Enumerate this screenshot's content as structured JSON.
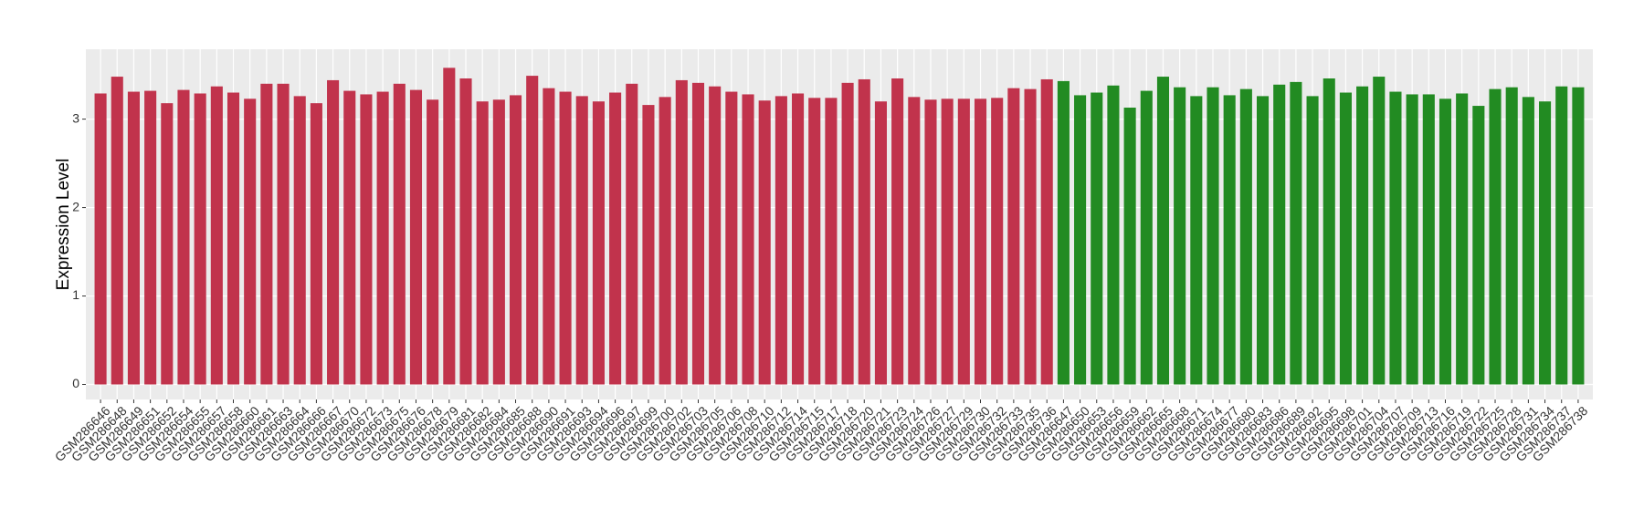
{
  "chart_data": {
    "type": "bar",
    "y_label": "Expression Level",
    "categories": [
      "GSM286646",
      "GSM286648",
      "GSM286649",
      "GSM286651",
      "GSM286652",
      "GSM286654",
      "GSM286655",
      "GSM286657",
      "GSM286658",
      "GSM286660",
      "GSM286661",
      "GSM286663",
      "GSM286664",
      "GSM286666",
      "GSM286667",
      "GSM286670",
      "GSM286672",
      "GSM286673",
      "GSM286675",
      "GSM286676",
      "GSM286678",
      "GSM286679",
      "GSM286681",
      "GSM286682",
      "GSM286684",
      "GSM286685",
      "GSM286688",
      "GSM286690",
      "GSM286691",
      "GSM286693",
      "GSM286694",
      "GSM286696",
      "GSM286697",
      "GSM286699",
      "GSM286700",
      "GSM286702",
      "GSM286703",
      "GSM286705",
      "GSM286706",
      "GSM286708",
      "GSM286710",
      "GSM286712",
      "GSM286714",
      "GSM286715",
      "GSM286717",
      "GSM286718",
      "GSM286720",
      "GSM286721",
      "GSM286723",
      "GSM286724",
      "GSM286726",
      "GSM286727",
      "GSM286729",
      "GSM286730",
      "GSM286732",
      "GSM286733",
      "GSM286735",
      "GSM286736",
      "GSM286647",
      "GSM286650",
      "GSM286653",
      "GSM286656",
      "GSM286659",
      "GSM286662",
      "GSM286665",
      "GSM286668",
      "GSM286671",
      "GSM286674",
      "GSM286677",
      "GSM286680",
      "GSM286683",
      "GSM286686",
      "GSM286689",
      "GSM286692",
      "GSM286695",
      "GSM286698",
      "GSM286701",
      "GSM286704",
      "GSM286707",
      "GSM286709",
      "GSM286713",
      "GSM286716",
      "GSM286719",
      "GSM286722",
      "GSM286725",
      "GSM286728",
      "GSM286731",
      "GSM286734",
      "GSM286737",
      "GSM286738"
    ],
    "values": [
      3.29,
      3.48,
      3.31,
      3.32,
      3.18,
      3.33,
      3.29,
      3.37,
      3.3,
      3.23,
      3.4,
      3.4,
      3.26,
      3.18,
      3.44,
      3.32,
      3.28,
      3.31,
      3.4,
      3.33,
      3.22,
      3.58,
      3.46,
      3.2,
      3.22,
      3.27,
      3.49,
      3.35,
      3.31,
      3.26,
      3.2,
      3.3,
      3.4,
      3.16,
      3.25,
      3.44,
      3.41,
      3.37,
      3.31,
      3.28,
      3.21,
      3.26,
      3.29,
      3.24,
      3.24,
      3.41,
      3.45,
      3.2,
      3.46,
      3.25,
      3.22,
      3.23,
      3.23,
      3.23,
      3.24,
      3.35,
      3.34,
      3.45,
      3.43,
      3.27,
      3.3,
      3.38,
      3.13,
      3.32,
      3.48,
      3.36,
      3.26,
      3.36,
      3.27,
      3.34,
      3.26,
      3.39,
      3.42,
      3.26,
      3.46,
      3.3,
      3.37,
      3.48,
      3.31,
      3.28,
      3.28,
      3.23,
      3.29,
      3.15,
      3.34,
      3.36,
      3.25,
      3.2,
      3.37,
      3.36
    ],
    "colors": [
      "#c1334c",
      "#c1334c",
      "#c1334c",
      "#c1334c",
      "#c1334c",
      "#c1334c",
      "#c1334c",
      "#c1334c",
      "#c1334c",
      "#c1334c",
      "#c1334c",
      "#c1334c",
      "#c1334c",
      "#c1334c",
      "#c1334c",
      "#c1334c",
      "#c1334c",
      "#c1334c",
      "#c1334c",
      "#c1334c",
      "#c1334c",
      "#c1334c",
      "#c1334c",
      "#c1334c",
      "#c1334c",
      "#c1334c",
      "#c1334c",
      "#c1334c",
      "#c1334c",
      "#c1334c",
      "#c1334c",
      "#c1334c",
      "#c1334c",
      "#c1334c",
      "#c1334c",
      "#c1334c",
      "#c1334c",
      "#c1334c",
      "#c1334c",
      "#c1334c",
      "#c1334c",
      "#c1334c",
      "#c1334c",
      "#c1334c",
      "#c1334c",
      "#c1334c",
      "#c1334c",
      "#c1334c",
      "#c1334c",
      "#c1334c",
      "#c1334c",
      "#c1334c",
      "#c1334c",
      "#c1334c",
      "#c1334c",
      "#c1334c",
      "#c1334c",
      "#c1334c",
      "#228b22",
      "#228b22",
      "#228b22",
      "#228b22",
      "#228b22",
      "#228b22",
      "#228b22",
      "#228b22",
      "#228b22",
      "#228b22",
      "#228b22",
      "#228b22",
      "#228b22",
      "#228b22",
      "#228b22",
      "#228b22",
      "#228b22",
      "#228b22",
      "#228b22",
      "#228b22",
      "#228b22",
      "#228b22",
      "#228b22",
      "#228b22",
      "#228b22",
      "#228b22",
      "#228b22",
      "#228b22",
      "#228b22",
      "#228b22",
      "#228b22",
      "#228b22"
    ],
    "ylim": [
      -0.17,
      3.79
    ],
    "yticks": [
      0,
      1,
      2,
      3
    ],
    "grid": true
  }
}
